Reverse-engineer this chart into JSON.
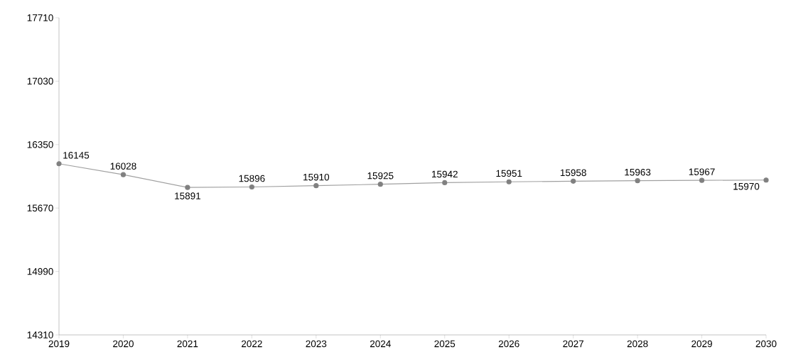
{
  "chart_data": {
    "type": "line",
    "x": [
      2019,
      2020,
      2021,
      2022,
      2023,
      2024,
      2025,
      2026,
      2027,
      2028,
      2029,
      2030
    ],
    "values": [
      16145,
      16028,
      15891,
      15896,
      15910,
      15925,
      15942,
      15951,
      15958,
      15963,
      15967,
      15970
    ],
    "color": "#a0a0a0",
    "marker": "circle",
    "data_labels": true,
    "xlim": [
      2019,
      2030
    ],
    "xticks": [
      2019,
      2020,
      2021,
      2022,
      2023,
      2024,
      2025,
      2026,
      2027,
      2028,
      2029,
      2030
    ],
    "ylim": [
      14310,
      17710
    ],
    "yticks": [
      14310,
      14990,
      15670,
      16350,
      17030,
      17710
    ],
    "grid": false
  }
}
